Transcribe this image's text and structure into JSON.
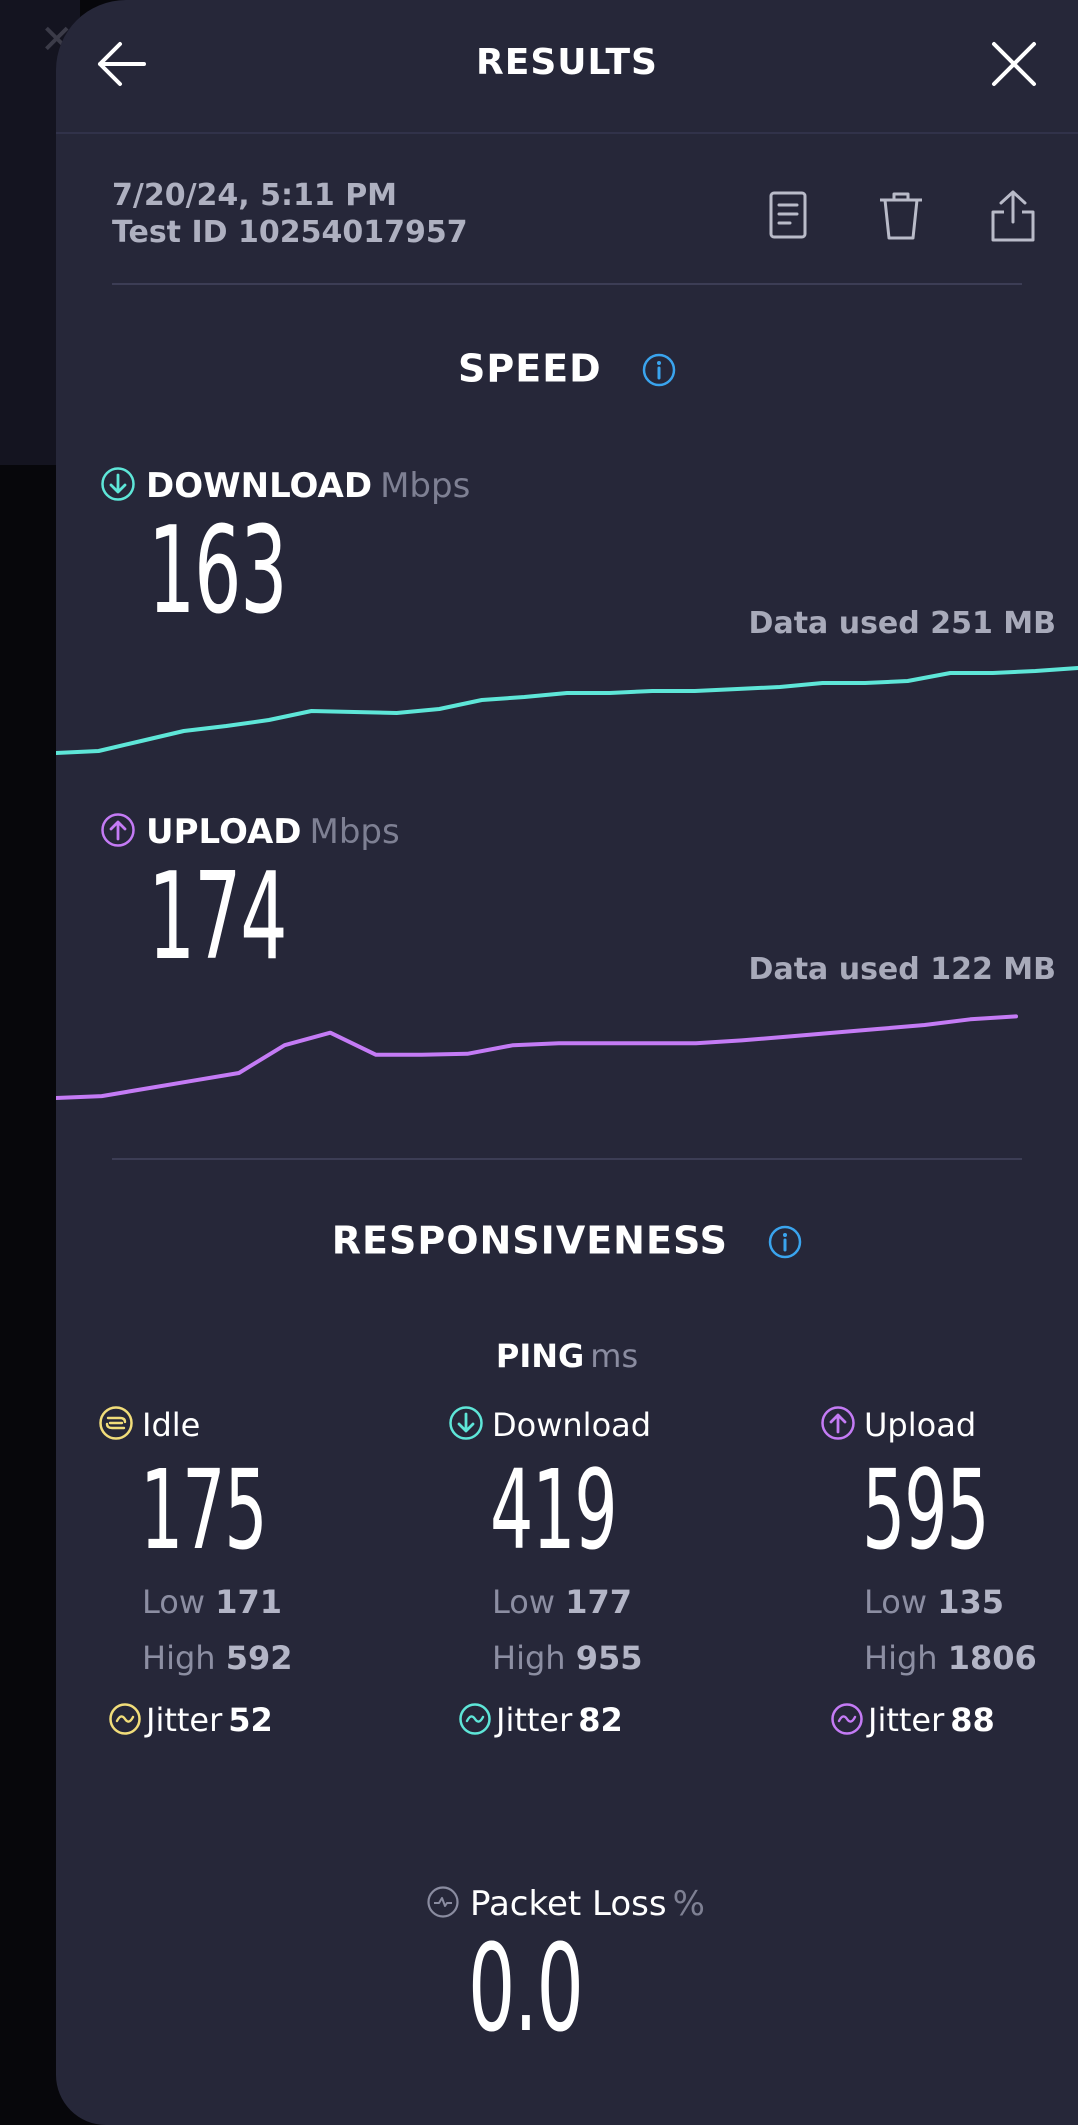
{
  "header": {
    "title": "RESULTS"
  },
  "meta": {
    "datetime": "7/20/24, 5:11 PM",
    "test_id": "Test ID 10254017957"
  },
  "icons": {
    "back": "arrow-left-icon",
    "close": "close-icon",
    "results": "document-icon",
    "delete": "trash-icon",
    "share": "share-icon",
    "info": "info-icon",
    "download": "download-arrow-icon",
    "upload": "upload-arrow-icon",
    "idle": "idle-icon",
    "jitter": "jitter-icon",
    "packet_loss": "packet-loss-icon"
  },
  "colors": {
    "download": "#5ee6d8",
    "upload": "#c47bf5",
    "idle": "#f1dd7a",
    "info": "#3aa4ee",
    "background": "#262739"
  },
  "speed": {
    "title": "SPEED",
    "download": {
      "label": "DOWNLOAD",
      "unit": "Mbps",
      "value": "163",
      "data_used": "Data used 251 MB",
      "series": [
        0.0,
        0.02,
        0.12,
        0.22,
        0.27,
        0.33,
        0.42,
        0.41,
        0.4,
        0.44,
        0.53,
        0.56,
        0.6,
        0.6,
        0.62,
        0.62,
        0.64,
        0.66,
        0.7,
        0.7,
        0.72,
        0.8,
        0.8,
        0.82,
        0.85
      ]
    },
    "upload": {
      "label": "UPLOAD",
      "unit": "Mbps",
      "value": "174",
      "data_used": "Data used 122 MB",
      "series": [
        0.0,
        0.02,
        0.1,
        0.18,
        0.26,
        0.55,
        0.68,
        0.45,
        0.45,
        0.46,
        0.55,
        0.57,
        0.57,
        0.57,
        0.57,
        0.6,
        0.64,
        0.68,
        0.72,
        0.76,
        0.82,
        0.85
      ]
    }
  },
  "responsiveness": {
    "title": "RESPONSIVENESS",
    "ping_label": "PING",
    "ping_unit": "ms",
    "columns": [
      {
        "label": "Idle",
        "value": "175",
        "low_label": "Low",
        "low": "171",
        "high_label": "High",
        "high": "592",
        "jitter_label": "Jitter",
        "jitter": "52"
      },
      {
        "label": "Download",
        "value": "419",
        "low_label": "Low",
        "low": "177",
        "high_label": "High",
        "high": "955",
        "jitter_label": "Jitter",
        "jitter": "82"
      },
      {
        "label": "Upload",
        "value": "595",
        "low_label": "Low",
        "low": "135",
        "high_label": "High",
        "high": "1806",
        "jitter_label": "Jitter",
        "jitter": "88"
      }
    ],
    "packet_loss": {
      "label": "Packet Loss",
      "unit": "%",
      "value": "0.0"
    }
  }
}
